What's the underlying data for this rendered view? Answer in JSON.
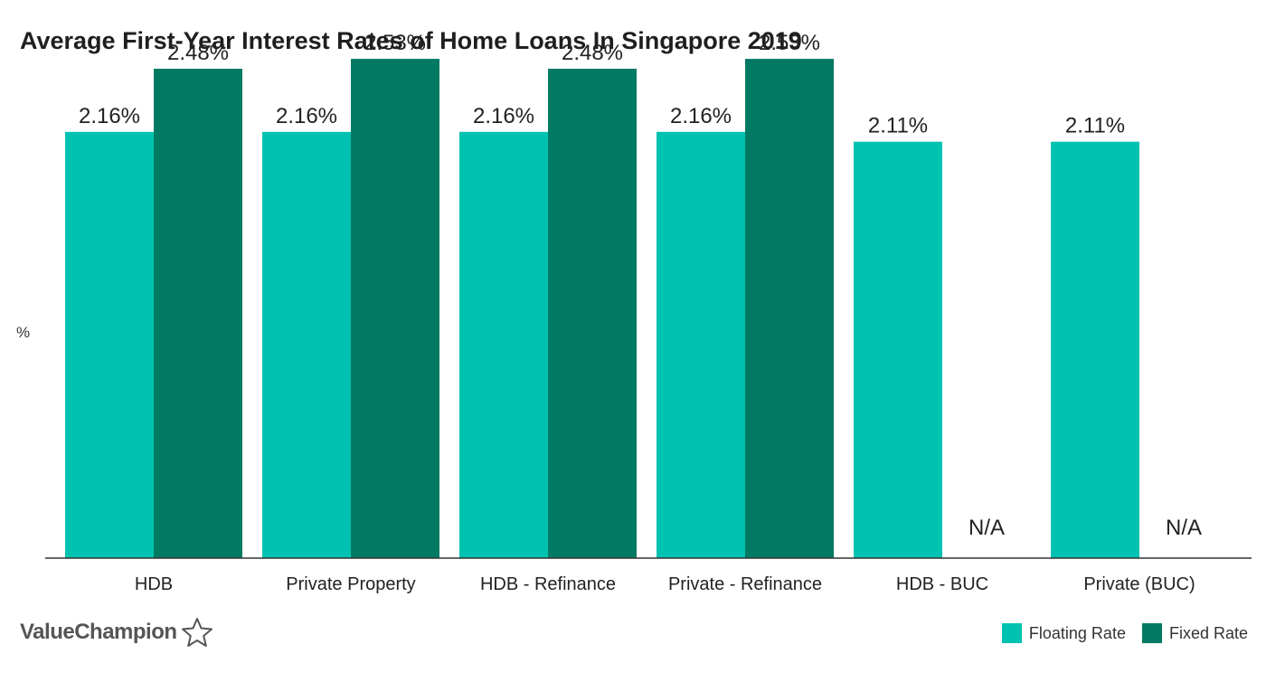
{
  "chart_data": {
    "type": "bar",
    "title": "Average First-Year Interest Rates of Home Loans In Singapore 2019",
    "xlabel": "",
    "ylabel": "%",
    "ylim": [
      0,
      2.7
    ],
    "grid": false,
    "legend_position": "bottom-right",
    "categories": [
      "HDB",
      "Private Property",
      "HDB - Refinance",
      "Private - Refinance",
      "HDB - BUC",
      "Private (BUC)"
    ],
    "series": [
      {
        "name": "Floating Rate",
        "color": "#00c2b0",
        "values": [
          2.16,
          2.16,
          2.16,
          2.16,
          2.11,
          2.11
        ],
        "labels": [
          "2.16%",
          "2.16%",
          "2.16%",
          "2.16%",
          "2.11%",
          "2.11%"
        ]
      },
      {
        "name": "Fixed Rate",
        "color": "#007a63",
        "values": [
          2.48,
          2.53,
          2.48,
          2.53,
          null,
          null
        ],
        "labels": [
          "2.48%",
          "2.53%",
          "2.48%",
          "2.53%",
          "N/A",
          "N/A"
        ]
      }
    ]
  },
  "branding": {
    "logo_text": "ValueChampion",
    "logo_icon": "star-outline-icon"
  }
}
